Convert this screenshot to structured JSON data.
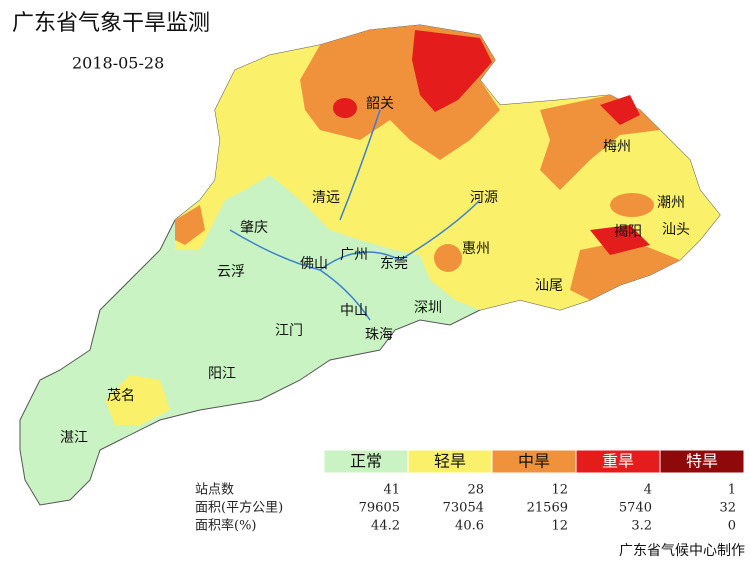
{
  "header": {
    "title": "广东省气象干旱监测",
    "date": "2018-05-28"
  },
  "cities": [
    "韶关",
    "梅州",
    "清远",
    "河源",
    "潮州",
    "肇庆",
    "揭阳",
    "汕头",
    "广州",
    "惠州",
    "云浮",
    "佛山",
    "东莞",
    "汕尾",
    "中山",
    "深圳",
    "江门",
    "珠海",
    "阳江",
    "茂名",
    "湛江"
  ],
  "legend": {
    "levels": [
      "正常",
      "轻旱",
      "中旱",
      "重旱",
      "特旱"
    ],
    "colors": [
      "#c9f3c2",
      "#fbf06a",
      "#f0923c",
      "#e41c1c",
      "#8e0a0a"
    ]
  },
  "table": {
    "rows": [
      [
        "站点数",
        41,
        28,
        12,
        4,
        1
      ],
      [
        "面积(平方公里)",
        79605,
        73054,
        21569,
        5740,
        32
      ],
      [
        "面积率(%)",
        44.2,
        40.6,
        12,
        3.2,
        0
      ]
    ]
  },
  "footer": "广东省气候中心制作"
}
